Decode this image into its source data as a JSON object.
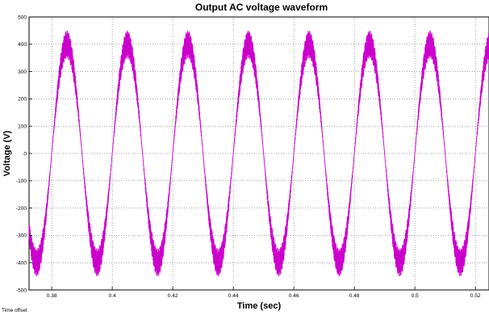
{
  "chart_data": {
    "type": "line",
    "title": "Output AC voltage waveform",
    "xlabel": "Time (sec)",
    "ylabel": "Voltage (V)",
    "xlim": [
      0.3725,
      0.5245
    ],
    "ylim": [
      -500,
      500
    ],
    "x_ticks": [
      0.38,
      0.4,
      0.42,
      0.44,
      0.46,
      0.48,
      0.5,
      0.52
    ],
    "x_tick_labels": [
      "0.38",
      "0.4",
      "0.42",
      "0.44",
      "0.46",
      "0.48",
      "0.5",
      "0.52"
    ],
    "y_ticks": [
      -500,
      -400,
      -300,
      -200,
      -100,
      0,
      100,
      200,
      300,
      400,
      500
    ],
    "y_tick_labels": [
      "-500",
      "-400",
      "-300",
      "-200",
      "-100",
      "0",
      "100",
      "200",
      "300",
      "400",
      "500"
    ],
    "grid": true,
    "series": [
      {
        "color": "#cc00cc",
        "waveform": "sine with high-frequency switching ripple",
        "frequency_hz": 50,
        "amplitude_v": 400,
        "peak_v": 460,
        "ripple_v": 50,
        "peaks_t": [
          0.385,
          0.405,
          0.425,
          0.445,
          0.465,
          0.485,
          0.505
        ],
        "troughs_t": [
          0.375,
          0.395,
          0.415,
          0.435,
          0.455,
          0.475,
          0.495,
          0.515
        ]
      }
    ]
  },
  "footer": {
    "time_offset_label": "Time offset"
  }
}
